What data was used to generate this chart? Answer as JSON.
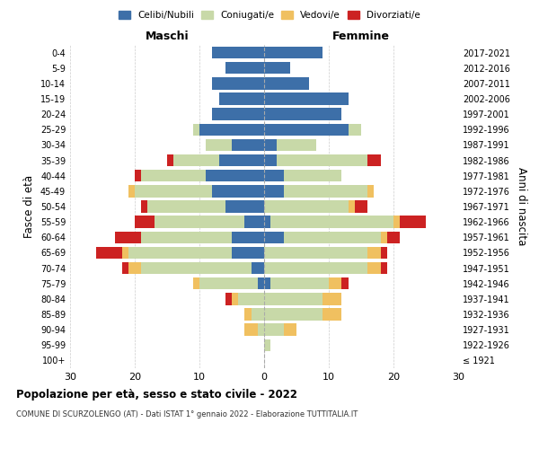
{
  "age_groups": [
    "100+",
    "95-99",
    "90-94",
    "85-89",
    "80-84",
    "75-79",
    "70-74",
    "65-69",
    "60-64",
    "55-59",
    "50-54",
    "45-49",
    "40-44",
    "35-39",
    "30-34",
    "25-29",
    "20-24",
    "15-19",
    "10-14",
    "5-9",
    "0-4"
  ],
  "birth_years": [
    "≤ 1921",
    "1922-1926",
    "1927-1931",
    "1932-1936",
    "1937-1941",
    "1942-1946",
    "1947-1951",
    "1952-1956",
    "1957-1961",
    "1962-1966",
    "1967-1971",
    "1972-1976",
    "1977-1981",
    "1982-1986",
    "1987-1991",
    "1992-1996",
    "1997-2001",
    "2002-2006",
    "2007-2011",
    "2012-2016",
    "2017-2021"
  ],
  "colors": {
    "celibe": "#3d6fa8",
    "coniugato": "#c8d9a8",
    "vedovo": "#f0c060",
    "divorziato": "#cc2222"
  },
  "maschi": {
    "celibe": [
      0,
      0,
      0,
      0,
      0,
      1,
      2,
      5,
      5,
      3,
      6,
      8,
      9,
      7,
      5,
      10,
      8,
      7,
      8,
      6,
      8
    ],
    "coniugato": [
      0,
      0,
      1,
      2,
      4,
      9,
      17,
      16,
      14,
      14,
      12,
      12,
      10,
      7,
      4,
      1,
      0,
      0,
      0,
      0,
      0
    ],
    "vedovo": [
      0,
      0,
      2,
      1,
      1,
      1,
      2,
      1,
      0,
      0,
      0,
      1,
      0,
      0,
      0,
      0,
      0,
      0,
      0,
      0,
      0
    ],
    "divorziato": [
      0,
      0,
      0,
      0,
      1,
      0,
      1,
      4,
      4,
      3,
      1,
      0,
      1,
      1,
      0,
      0,
      0,
      0,
      0,
      0,
      0
    ]
  },
  "femmine": {
    "nubile": [
      0,
      0,
      0,
      0,
      0,
      1,
      0,
      0,
      3,
      1,
      0,
      3,
      3,
      2,
      2,
      13,
      12,
      13,
      7,
      4,
      9
    ],
    "coniugata": [
      0,
      1,
      3,
      9,
      9,
      9,
      16,
      16,
      15,
      19,
      13,
      13,
      9,
      14,
      6,
      2,
      0,
      0,
      0,
      0,
      0
    ],
    "vedova": [
      0,
      0,
      2,
      3,
      3,
      2,
      2,
      2,
      1,
      1,
      1,
      1,
      0,
      0,
      0,
      0,
      0,
      0,
      0,
      0,
      0
    ],
    "divorziata": [
      0,
      0,
      0,
      0,
      0,
      1,
      1,
      1,
      2,
      4,
      2,
      0,
      0,
      2,
      0,
      0,
      0,
      0,
      0,
      0,
      0
    ]
  },
  "xlim": 30,
  "title": "Popolazione per età, sesso e stato civile - 2022",
  "subtitle": "COMUNE DI SCURZOLENGO (AT) - Dati ISTAT 1° gennaio 2022 - Elaborazione TUTTITALIA.IT",
  "xlabel_left": "Maschi",
  "xlabel_right": "Femmine",
  "ylabel_left": "Fasce di età",
  "ylabel_right": "Anni di nascita",
  "legend_labels": [
    "Celibi/Nubili",
    "Coniugati/e",
    "Vedovi/e",
    "Divorziati/e"
  ],
  "legend_colors": [
    "#3d6fa8",
    "#c8d9a8",
    "#f0c060",
    "#cc2222"
  ]
}
